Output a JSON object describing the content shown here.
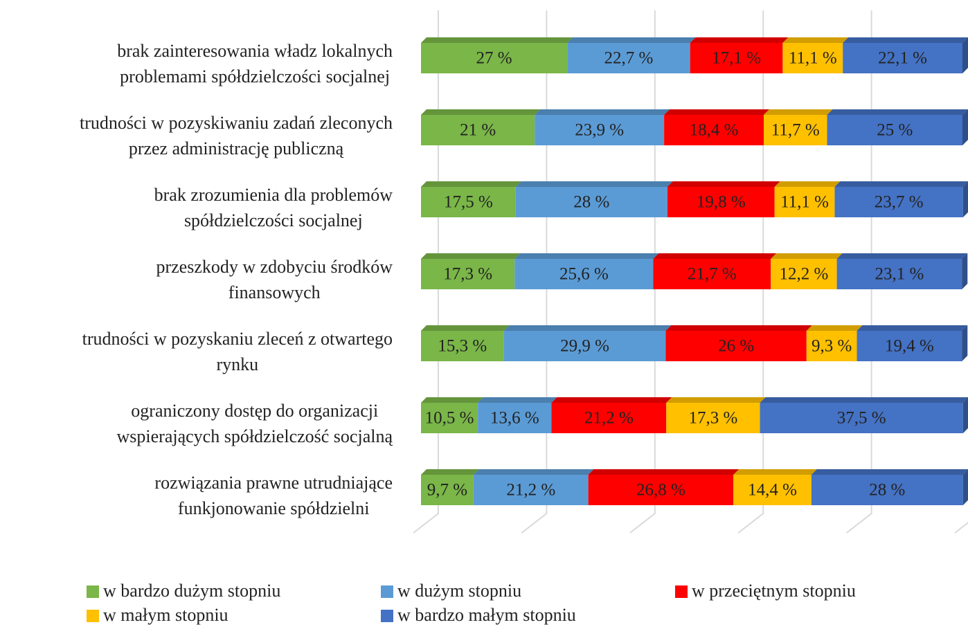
{
  "chart_data": {
    "type": "stacked-bar-horizontal",
    "categories": [
      [
        "brak zainteresowania władz lokalnych",
        "problemami spółdzielczości socjalnej"
      ],
      [
        "trudności w pozyskiwaniu zadań zleconych",
        "przez administrację publiczną"
      ],
      [
        "brak zrozumienia dla problemów",
        "spółdzielczości socjalnej"
      ],
      [
        "przeszkody w zdobyciu środków",
        "finansowych"
      ],
      [
        "trudności w pozyskaniu zleceń z otwartego",
        "rynku"
      ],
      [
        "ograniczony dostęp do organizacji",
        "wspierających spółdzielczość socjalną"
      ],
      [
        "rozwiązania prawne utrudniające",
        "funkjonowanie spółdzielni"
      ]
    ],
    "series": [
      {
        "name": "w bardzo dużym stopniu",
        "color": "#7ab648",
        "values": [
          27,
          21,
          17.5,
          17.3,
          15.3,
          10.5,
          9.7
        ],
        "value_labels": [
          "27 %",
          "21 %",
          "17,5 %",
          "17,3 %",
          "15,3 %",
          "10,5 %",
          "9,7 %"
        ]
      },
      {
        "name": "w dużym stopniu",
        "color": "#5b9bd5",
        "values": [
          22.7,
          23.9,
          28,
          25.6,
          29.9,
          13.6,
          21.2
        ],
        "value_labels": [
          "22,7 %",
          "23,9 %",
          "28 %",
          "25,6 %",
          "29,9 %",
          "13,6 %",
          "21,2 %"
        ]
      },
      {
        "name": "w przeciętnym stopniu",
        "color": "#ff0000",
        "values": [
          17.1,
          18.4,
          19.8,
          21.7,
          26,
          21.2,
          26.8
        ],
        "value_labels": [
          "17,1 %",
          "18,4 %",
          "19,8 %",
          "21,7 %",
          "26 %",
          "21,2 %",
          "26,8 %"
        ]
      },
      {
        "name": "w małym stopniu",
        "color": "#ffc000",
        "values": [
          11.1,
          11.7,
          11.1,
          12.2,
          9.3,
          17.3,
          14.4
        ],
        "value_labels": [
          "11,1 %",
          "11,7 %",
          "11,1 %",
          "12,2 %",
          "9,3 %",
          "17,3 %",
          "14,4 %"
        ]
      },
      {
        "name": "w bardzo małym stopniu",
        "color": "#4472c4",
        "values": [
          22.1,
          25,
          23.7,
          23.1,
          19.4,
          37.5,
          28
        ],
        "value_labels": [
          "22,1 %",
          "25 %",
          "23,7 %",
          "23,1 %",
          "19,4 %",
          "37,5 %",
          "28 %"
        ]
      }
    ],
    "xlim": [
      0,
      100
    ],
    "xticks": [
      0,
      20,
      40,
      60,
      80,
      100
    ],
    "grid": true
  }
}
